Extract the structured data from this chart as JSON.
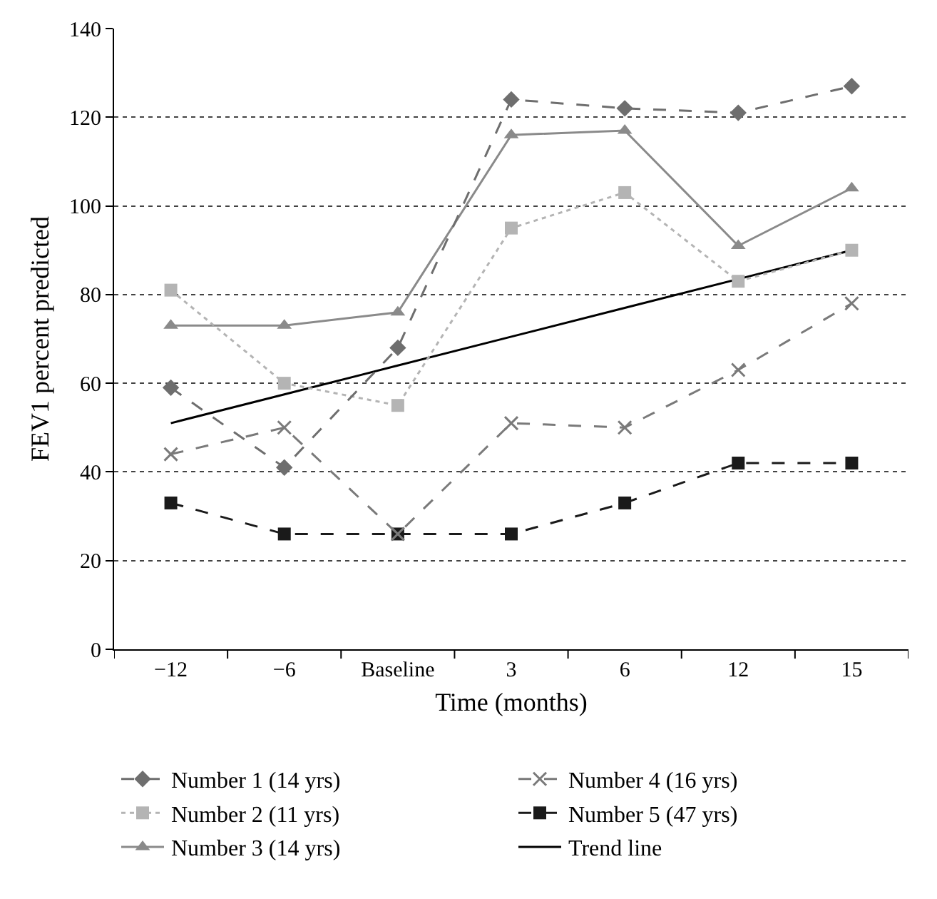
{
  "chart_data": {
    "type": "line",
    "xlabel": "Time (months)",
    "ylabel": "FEV1 percent predicted",
    "categories": [
      "−12",
      "−6",
      "Baseline",
      "3",
      "6",
      "12",
      "15"
    ],
    "ylim": [
      0,
      140
    ],
    "yticks": [
      0,
      20,
      40,
      60,
      80,
      100,
      120,
      140
    ],
    "grid": "y",
    "legend": "bottom",
    "series": [
      {
        "name": "Number 1 (14 yrs)",
        "color": "#6e6e6e",
        "marker": "diamond",
        "line_style": "dashed",
        "values": [
          59,
          41,
          68,
          124,
          122,
          121,
          127
        ]
      },
      {
        "name": "Number 2 (11 yrs)",
        "color": "#b4b4b4",
        "marker": "square",
        "line_style": "dotted",
        "values": [
          81,
          60,
          55,
          95,
          103,
          83,
          90
        ]
      },
      {
        "name": "Number 3 (14 yrs)",
        "color": "#8a8a8a",
        "marker": "triangle",
        "line_style": "solid",
        "values": [
          73,
          73,
          76,
          116,
          117,
          91,
          104
        ]
      },
      {
        "name": "Number 4 (16 yrs)",
        "color": "#7a7a7a",
        "marker": "cross",
        "line_style": "dashed",
        "values": [
          44,
          50,
          26,
          51,
          50,
          63,
          78
        ]
      },
      {
        "name": "Number 5 (47 yrs)",
        "color": "#1a1a1a",
        "marker": "square",
        "line_style": "dashed",
        "values": [
          33,
          26,
          26,
          26,
          33,
          42,
          42
        ]
      },
      {
        "name": "Trend line",
        "color": "#000000",
        "marker": "none",
        "line_style": "solid",
        "values": [
          51,
          57.5,
          64,
          70.5,
          77,
          83.5,
          90
        ]
      }
    ]
  }
}
